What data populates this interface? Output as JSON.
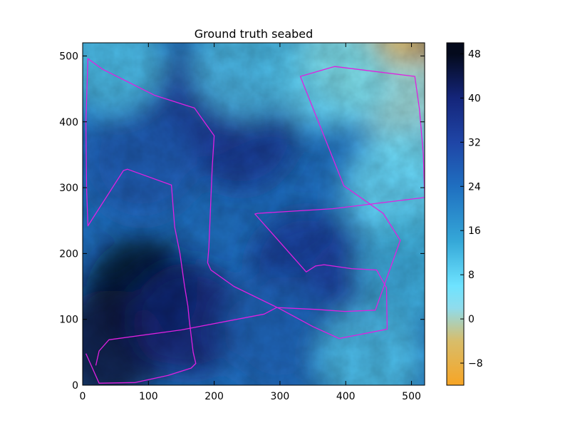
{
  "chart_data": {
    "type": "heatmap",
    "title": "Ground truth seabed",
    "xlabel": "",
    "ylabel": "",
    "xlim": [
      0,
      520
    ],
    "ylim": [
      0,
      520
    ],
    "x_ticks": [
      0,
      100,
      200,
      300,
      400,
      500
    ],
    "y_ticks": [
      0,
      100,
      200,
      300,
      400,
      500
    ],
    "grid": false,
    "colorbar": {
      "range": [
        -12,
        50
      ],
      "ticks": [
        -8,
        0,
        8,
        16,
        24,
        32,
        40,
        48
      ],
      "colors": {
        "-12": "#f7a525",
        "-4": "#d8bd6a",
        "2": "#8fdcec",
        "6": "#6ee3ff",
        "14": "#35a8d8",
        "24": "#1f6fc0",
        "32": "#1f45a6",
        "40": "#14257a",
        "48": "#040a1c"
      }
    },
    "depth_features": [
      {
        "kind": "deep",
        "x": 90,
        "y": 140,
        "value": 48
      },
      {
        "kind": "deep",
        "x": 40,
        "y": 60,
        "value": 45
      },
      {
        "kind": "deep",
        "x": 160,
        "y": 100,
        "value": 40
      },
      {
        "kind": "deep",
        "x": 240,
        "y": 380,
        "value": 36
      },
      {
        "kind": "deep",
        "x": 180,
        "y": 430,
        "value": 34
      },
      {
        "kind": "deep",
        "x": 340,
        "y": 180,
        "value": 35
      },
      {
        "kind": "deep",
        "x": 420,
        "y": 140,
        "value": 33
      },
      {
        "kind": "deep",
        "x": 90,
        "y": 340,
        "value": 28
      },
      {
        "kind": "deep",
        "x": 300,
        "y": 80,
        "value": 26
      },
      {
        "kind": "shallow",
        "x": 480,
        "y": 470,
        "value": -10
      },
      {
        "kind": "shallow",
        "x": 420,
        "y": 505,
        "value": -4
      },
      {
        "kind": "shallow",
        "x": 510,
        "y": 410,
        "value": 2
      },
      {
        "kind": "shallow",
        "x": 480,
        "y": 300,
        "value": 6
      },
      {
        "kind": "shallow",
        "x": 380,
        "y": 470,
        "value": 6
      },
      {
        "kind": "shallow",
        "x": 40,
        "y": 495,
        "value": 10
      },
      {
        "kind": "shallow",
        "x": 250,
        "y": 490,
        "value": 10
      },
      {
        "kind": "shallow",
        "x": 440,
        "y": 40,
        "value": 10
      },
      {
        "kind": "shallow",
        "x": 500,
        "y": 180,
        "value": 12
      }
    ],
    "series": [
      {
        "color": "#e020e0",
        "x": [
          5,
          25,
          80,
          130,
          165,
          172,
          168,
          162,
          160,
          155,
          148,
          140,
          135,
          68,
          62,
          8,
          6,
          5,
          8,
          30,
          110,
          170,
          200,
          197,
          194,
          192,
          190,
          195,
          230,
          300,
          350,
          390,
          463,
          462,
          447,
          409,
          367,
          354,
          340,
          262,
          266,
          380,
          520,
          518,
          512,
          505,
          383,
          331,
          397,
          457,
          483,
          445,
          399,
          356,
          295,
          276,
          150,
          40,
          25,
          20
        ],
        "y": [
          48,
          3,
          4,
          15,
          26,
          33,
          50,
          100,
          120,
          150,
          200,
          240,
          304,
          328,
          326,
          242,
          300,
          400,
          496,
          480,
          440,
          421,
          379,
          330,
          260,
          210,
          186,
          175,
          150,
          116,
          89,
          71,
          85,
          148,
          175,
          177,
          183,
          181,
          172,
          260,
          261,
          268,
          285,
          350,
          420,
          469,
          484,
          469,
          303,
          261,
          220,
          114,
          112,
          115,
          118,
          108,
          84,
          69,
          52,
          30
        ]
      }
    ]
  }
}
